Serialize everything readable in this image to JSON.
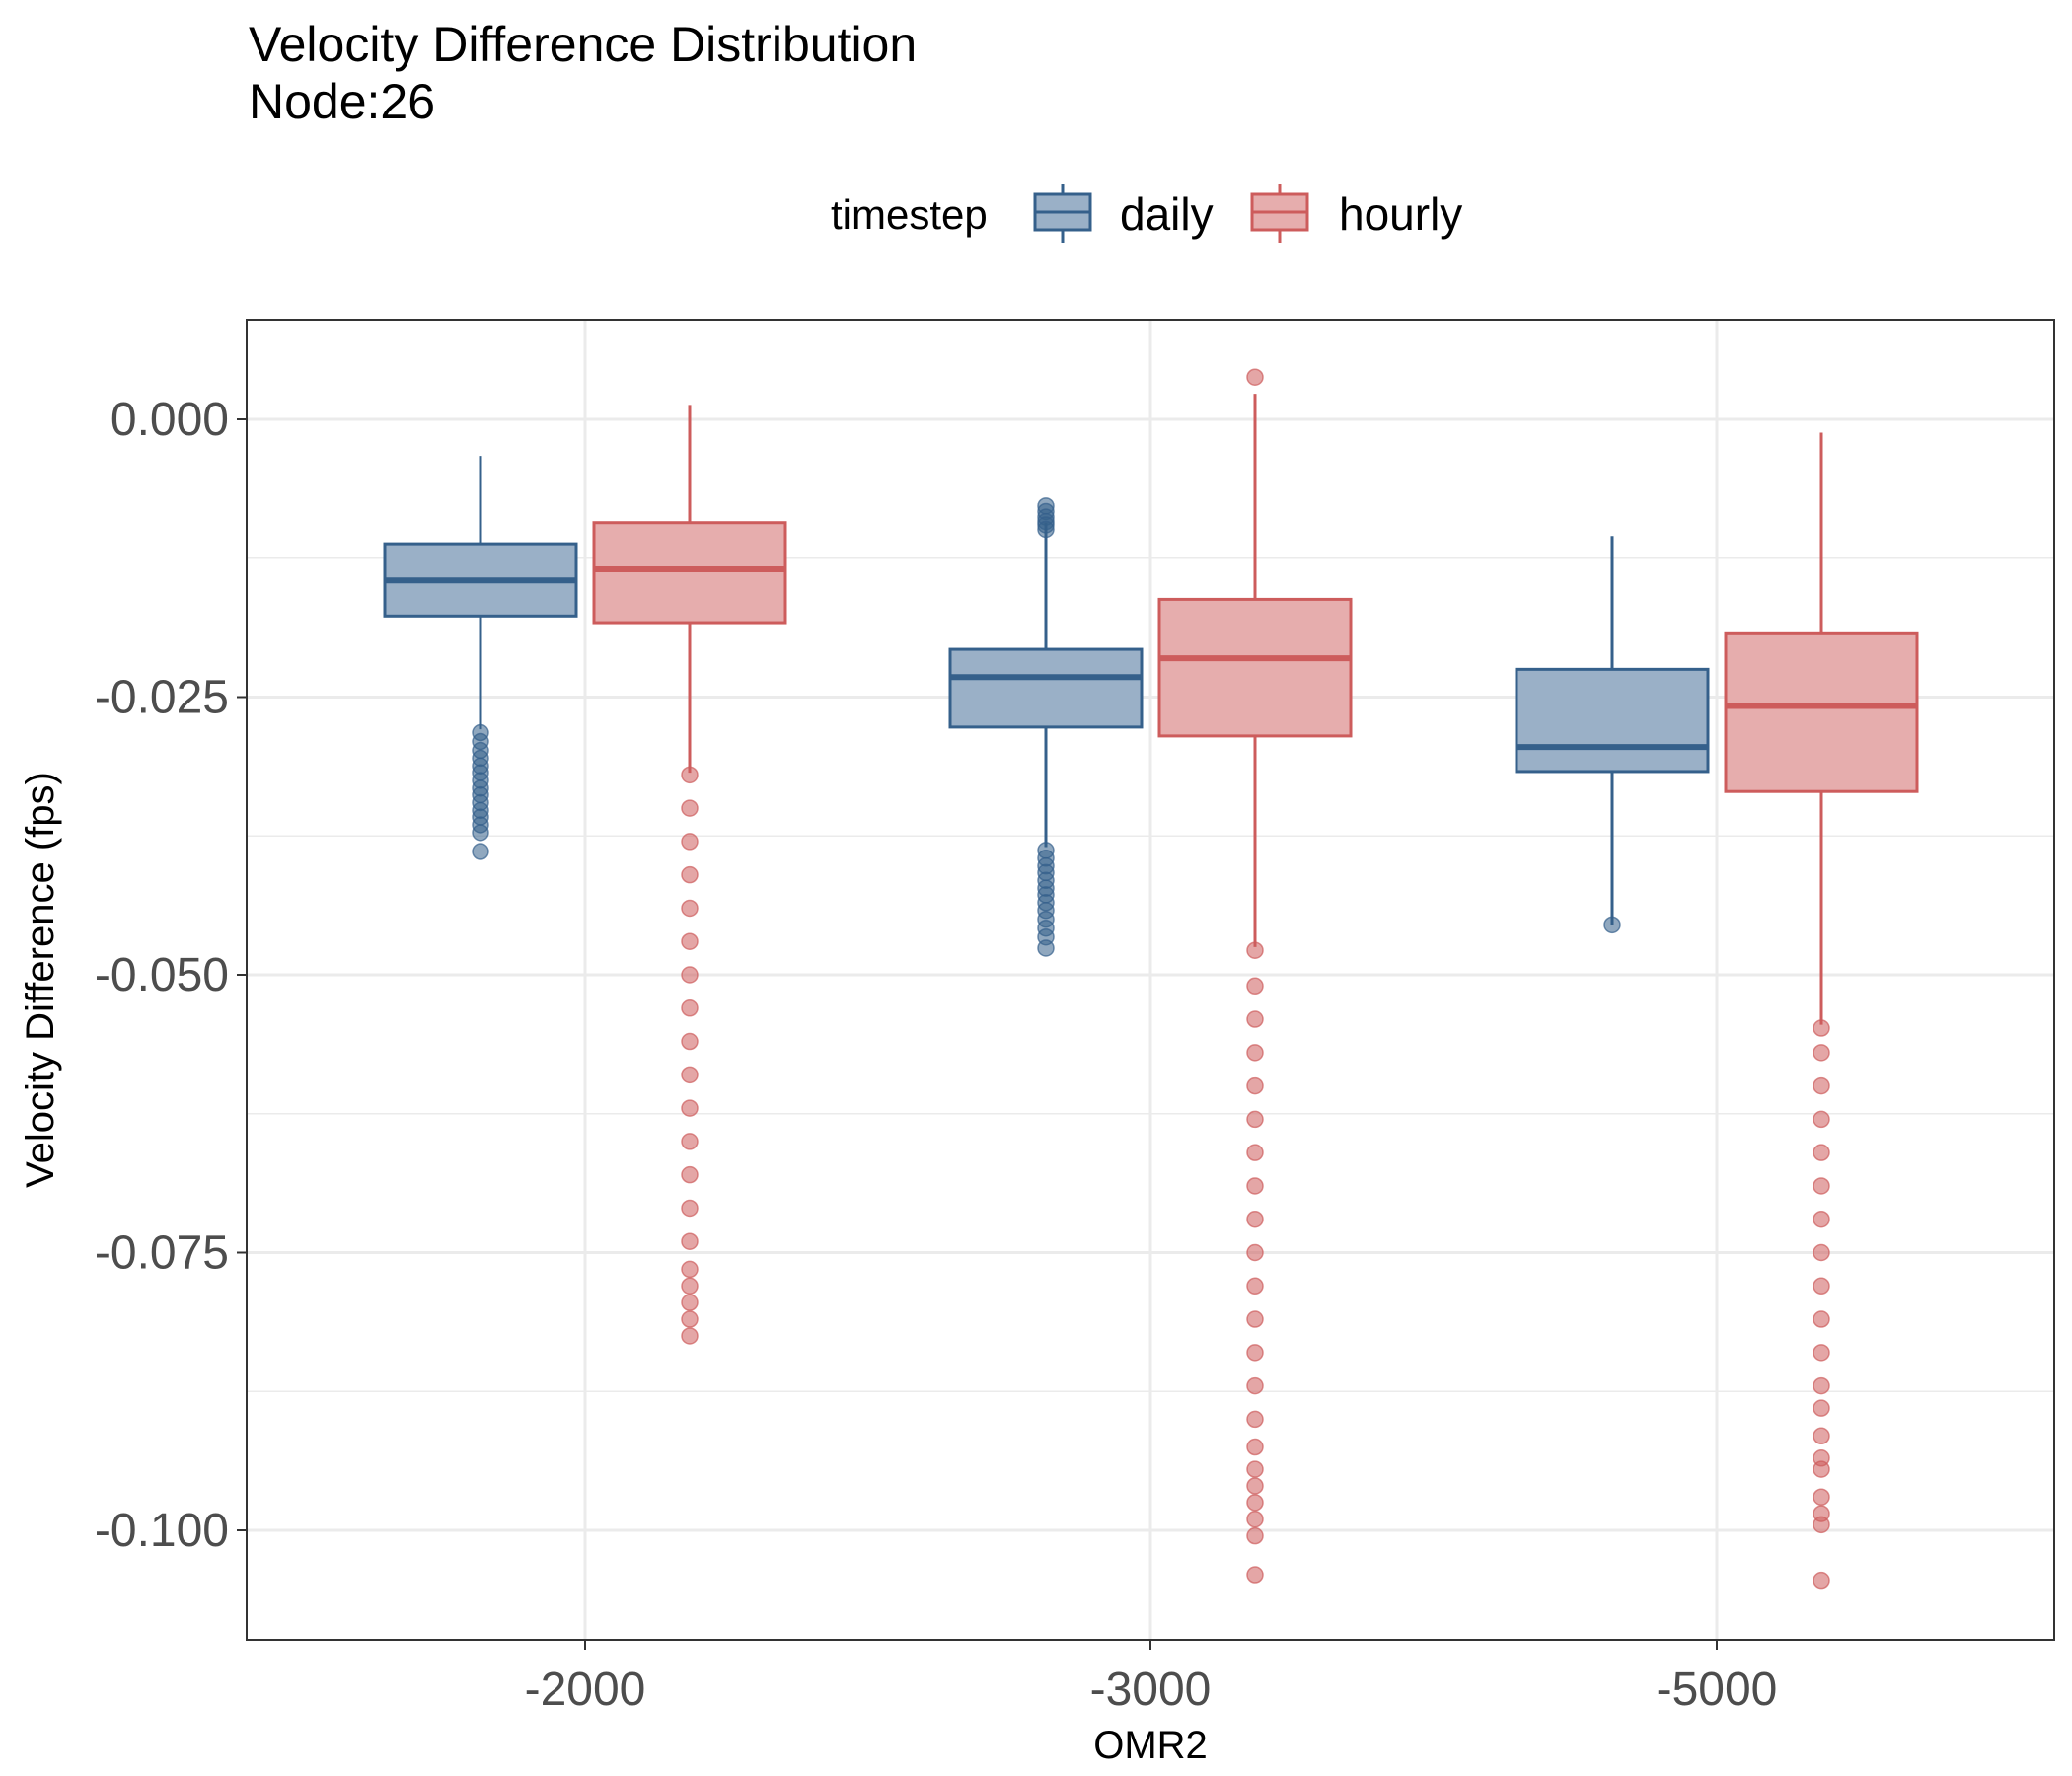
{
  "chart_data": {
    "type": "boxplot",
    "title": "Velocity Difference Distribution",
    "subtitle": "Node:26",
    "xlabel": "OMR2",
    "ylabel": "Velocity Difference (fps)",
    "ylim": [
      -0.109,
      0.009
    ],
    "y_ticks": [
      0.0,
      -0.025,
      -0.05,
      -0.075,
      -0.1
    ],
    "y_tick_labels": [
      "0.000",
      "-0.025",
      "-0.050",
      "-0.075",
      "-0.100"
    ],
    "categories": [
      "-2000",
      "-3000",
      "-5000"
    ],
    "legend": {
      "title": "timestep",
      "position": "top"
    },
    "grid": true,
    "series": [
      {
        "name": "daily",
        "color": "#35608b",
        "fill": "#9ab0c7",
        "boxes": [
          {
            "whisker_high": -0.0033,
            "q3": -0.0112,
            "median": -0.0145,
            "q1": -0.0177,
            "whisker_low": -0.0279,
            "outliers": [
              -0.0282,
              -0.029,
              -0.0298,
              -0.0305,
              -0.0312,
              -0.0318,
              -0.0325,
              -0.0332,
              -0.0338,
              -0.0345,
              -0.0352,
              -0.0358,
              -0.0365,
              -0.0372,
              -0.0389
            ]
          },
          {
            "whisker_high": -0.0093,
            "q3": -0.0207,
            "median": -0.0232,
            "q1": -0.0277,
            "whisker_low": -0.0385,
            "outliers": [
              -0.0078,
              -0.0083,
              -0.0088,
              -0.0092,
              -0.0095,
              -0.0099,
              -0.0388,
              -0.0395,
              -0.0402,
              -0.0408,
              -0.0415,
              -0.0422,
              -0.0428,
              -0.0435,
              -0.0442,
              -0.045,
              -0.0458,
              -0.0466,
              -0.0476
            ]
          },
          {
            "whisker_high": -0.0105,
            "q3": -0.0225,
            "median": -0.0295,
            "q1": -0.0317,
            "whisker_low": -0.0455,
            "outliers": [
              -0.0455
            ]
          }
        ]
      },
      {
        "name": "hourly",
        "color": "#cd5c5c",
        "fill": "#e6adad",
        "boxes": [
          {
            "whisker_high": 0.0013,
            "q3": -0.0093,
            "median": -0.0135,
            "q1": -0.0183,
            "whisker_low": -0.0318,
            "outliers": [
              -0.032,
              -0.035,
              -0.038,
              -0.041,
              -0.044,
              -0.047,
              -0.05,
              -0.053,
              -0.056,
              -0.059,
              -0.062,
              -0.065,
              -0.068,
              -0.071,
              -0.074,
              -0.0765,
              -0.078,
              -0.0795,
              -0.081,
              -0.0825
            ]
          },
          {
            "whisker_high": 0.0023,
            "q3": -0.0162,
            "median": -0.0215,
            "q1": -0.0285,
            "whisker_low": -0.0475,
            "outliers": [
              0.0038,
              -0.0478,
              -0.051,
              -0.054,
              -0.057,
              -0.06,
              -0.063,
              -0.066,
              -0.069,
              -0.072,
              -0.075,
              -0.078,
              -0.081,
              -0.084,
              -0.087,
              -0.09,
              -0.0925,
              -0.0945,
              -0.096,
              -0.0975,
              -0.099,
              -0.1005,
              -0.104
            ]
          },
          {
            "whisker_high": -0.0012,
            "q3": -0.0193,
            "median": -0.0258,
            "q1": -0.0335,
            "whisker_low": -0.0545,
            "outliers": [
              -0.0548,
              -0.057,
              -0.06,
              -0.063,
              -0.066,
              -0.069,
              -0.072,
              -0.075,
              -0.078,
              -0.081,
              -0.084,
              -0.087,
              -0.089,
              -0.0915,
              -0.0935,
              -0.0945,
              -0.097,
              -0.0985,
              -0.0995,
              -0.1045
            ]
          }
        ]
      }
    ]
  }
}
